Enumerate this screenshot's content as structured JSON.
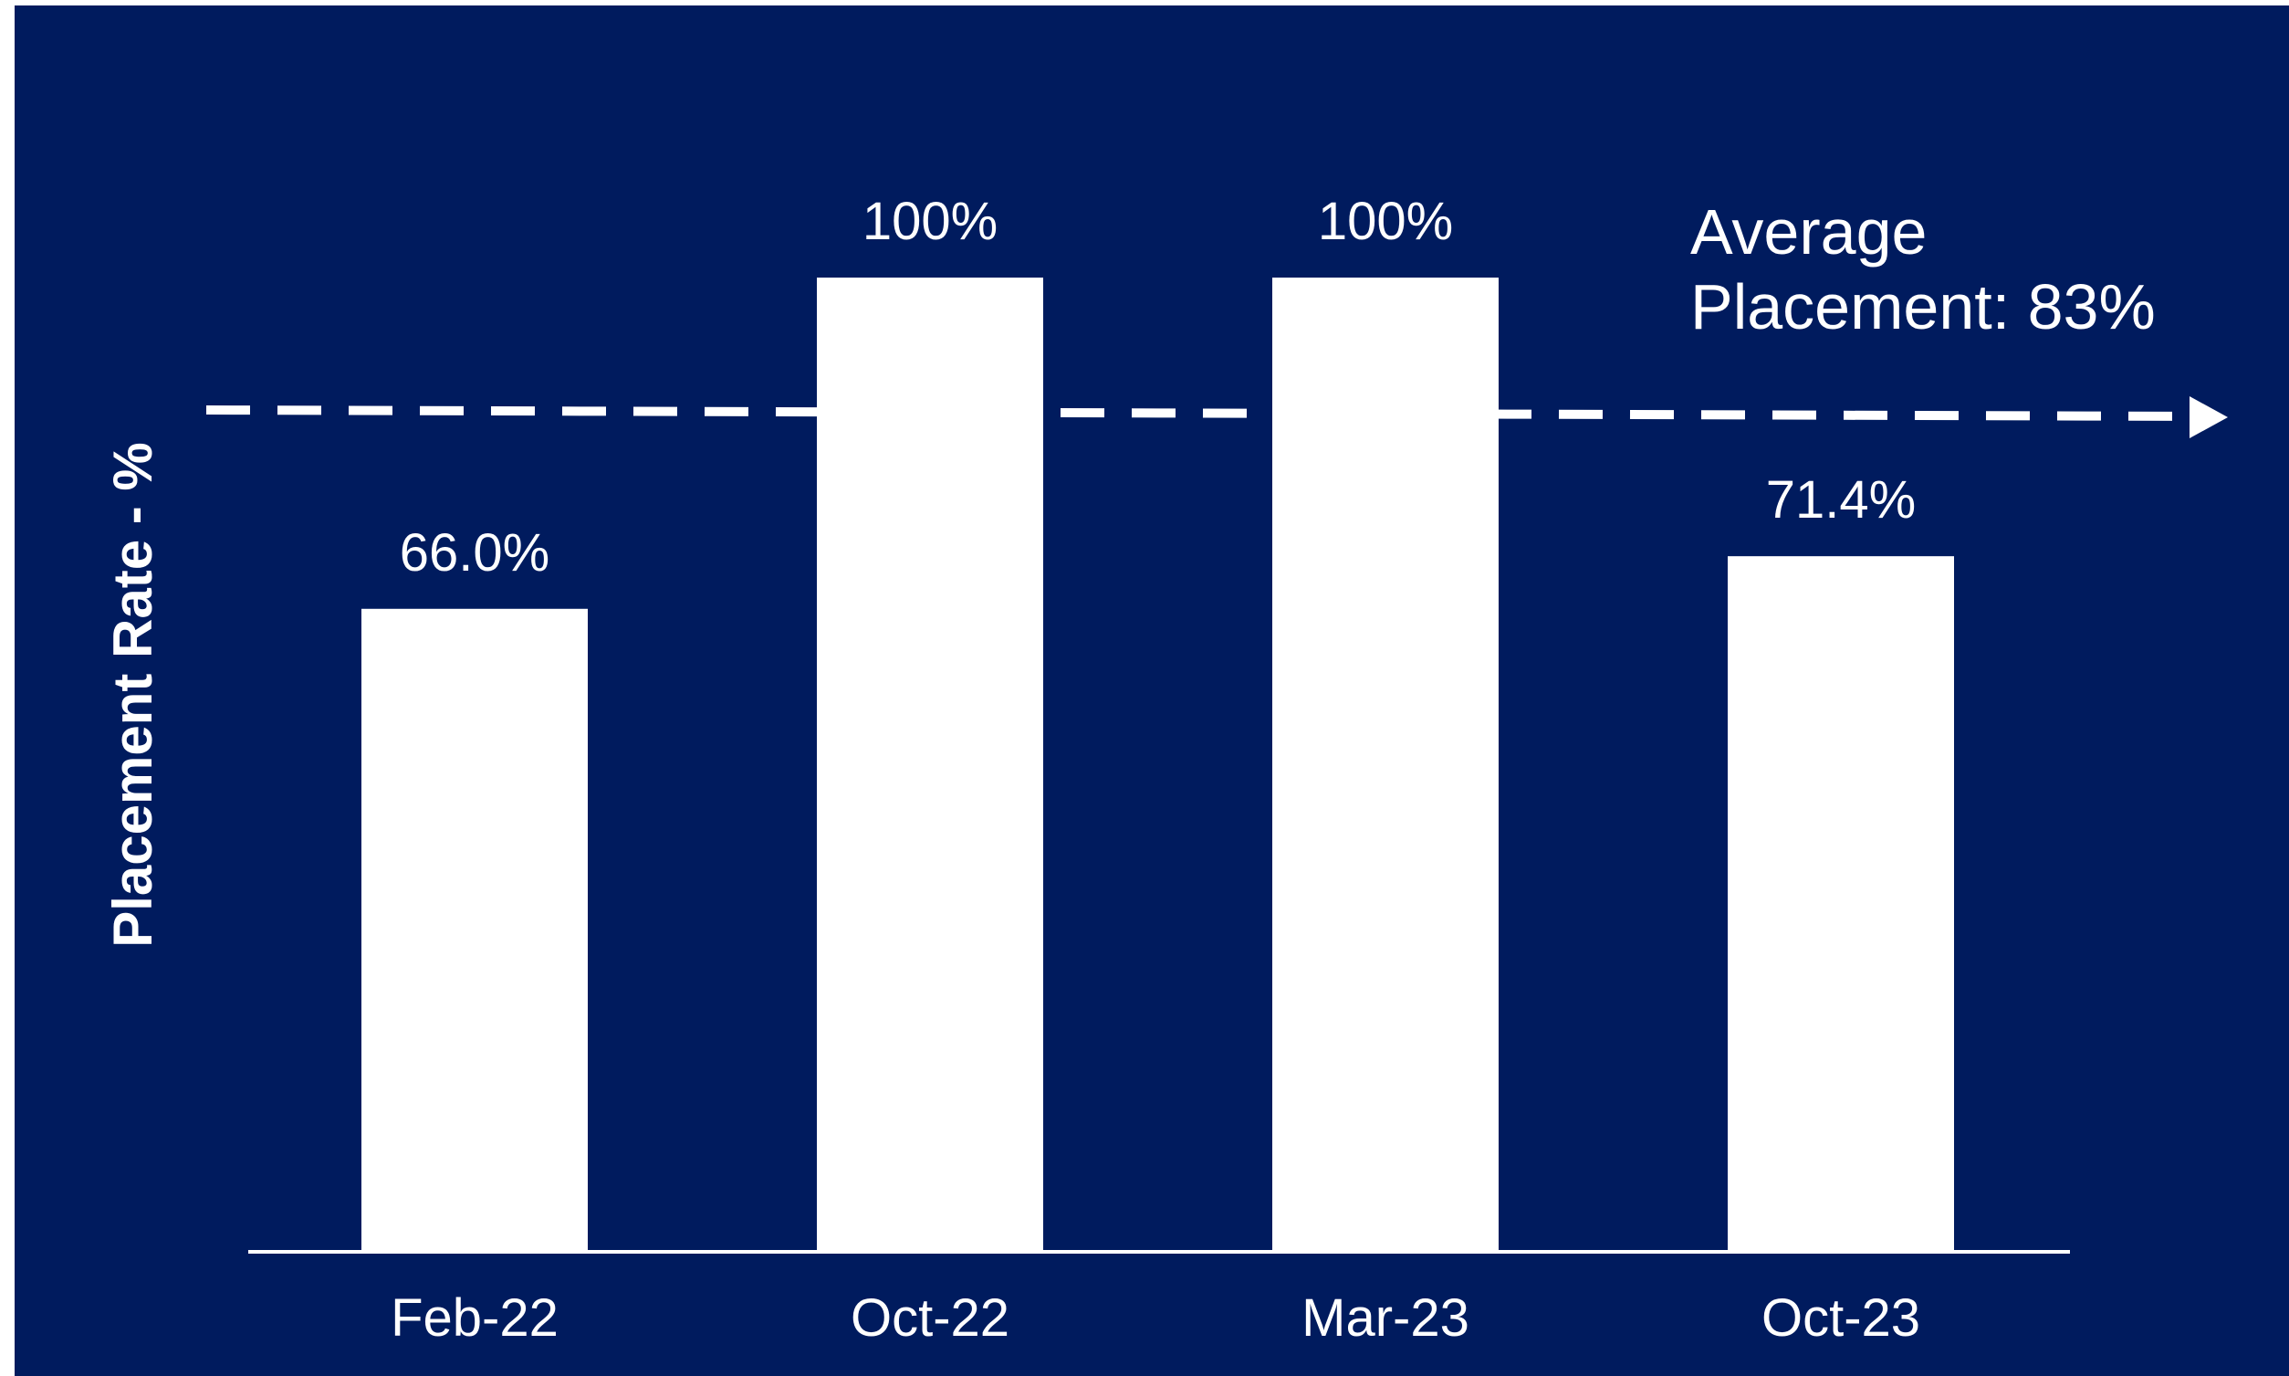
{
  "chart_data": {
    "type": "bar",
    "title": "",
    "xlabel": "",
    "ylabel": "Placement Rate - %",
    "categories": [
      "Feb-22",
      "Oct-22",
      "Mar-23",
      "Oct-23"
    ],
    "values": [
      66.0,
      100,
      100,
      71.4
    ],
    "value_labels": [
      "66.0%",
      "100%",
      "100%",
      "71.4%"
    ],
    "ylim": [
      0,
      100
    ],
    "grid": false,
    "legend": "none",
    "reference_line": {
      "value": 83,
      "style": "dashed-arrow",
      "label_lines": [
        "Average",
        "Placement: 83%"
      ]
    },
    "colors": {
      "background": "#001b5e",
      "bars": "#ffffff",
      "text": "#ffffff"
    }
  }
}
